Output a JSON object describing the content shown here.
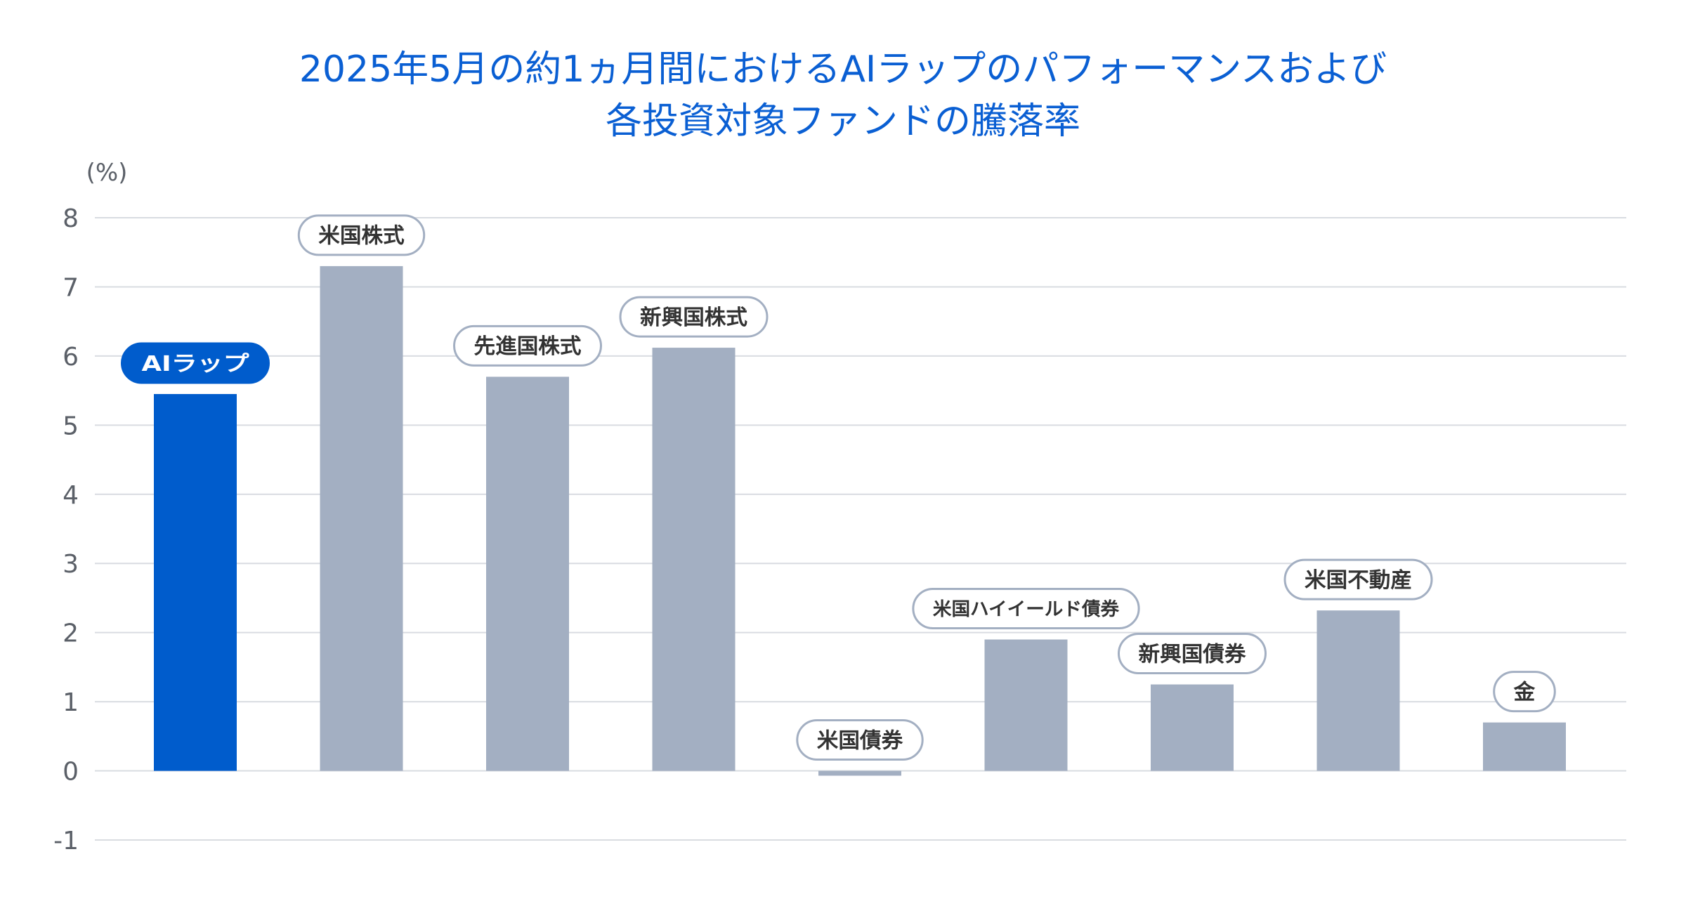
{
  "chart_data": {
    "type": "bar",
    "title": "2025年5月の約1ヵ月間におけるAIラップのパフォーマンスおよび",
    "subtitle": "各投資対象ファンドの騰落率",
    "ylabel": "(%)",
    "xlabel": "",
    "ylim": [
      -1,
      8
    ],
    "yticks": [
      "8",
      "7",
      "6",
      "5",
      "4",
      "3",
      "2",
      "1",
      "0",
      "-1"
    ],
    "grid": true,
    "categories": [
      "AIラップ",
      "米国株式",
      "先進国株式",
      "新興国株式",
      "米国債券",
      "米国ハイイールド債券",
      "新興国債券",
      "米国不動産",
      "金"
    ],
    "values": [
      5.45,
      7.3,
      5.7,
      6.12,
      -0.07,
      1.9,
      1.25,
      2.32,
      0.7
    ],
    "highlight_index": 0
  },
  "colors": {
    "title": "#0a5fd3",
    "highlight_bar": "#005ccc",
    "bar": "#a3afc2",
    "grid": "#d9dce1",
    "axis_text": "#5b6068",
    "label_border": "#a3afc2",
    "label_text": "#333333"
  }
}
